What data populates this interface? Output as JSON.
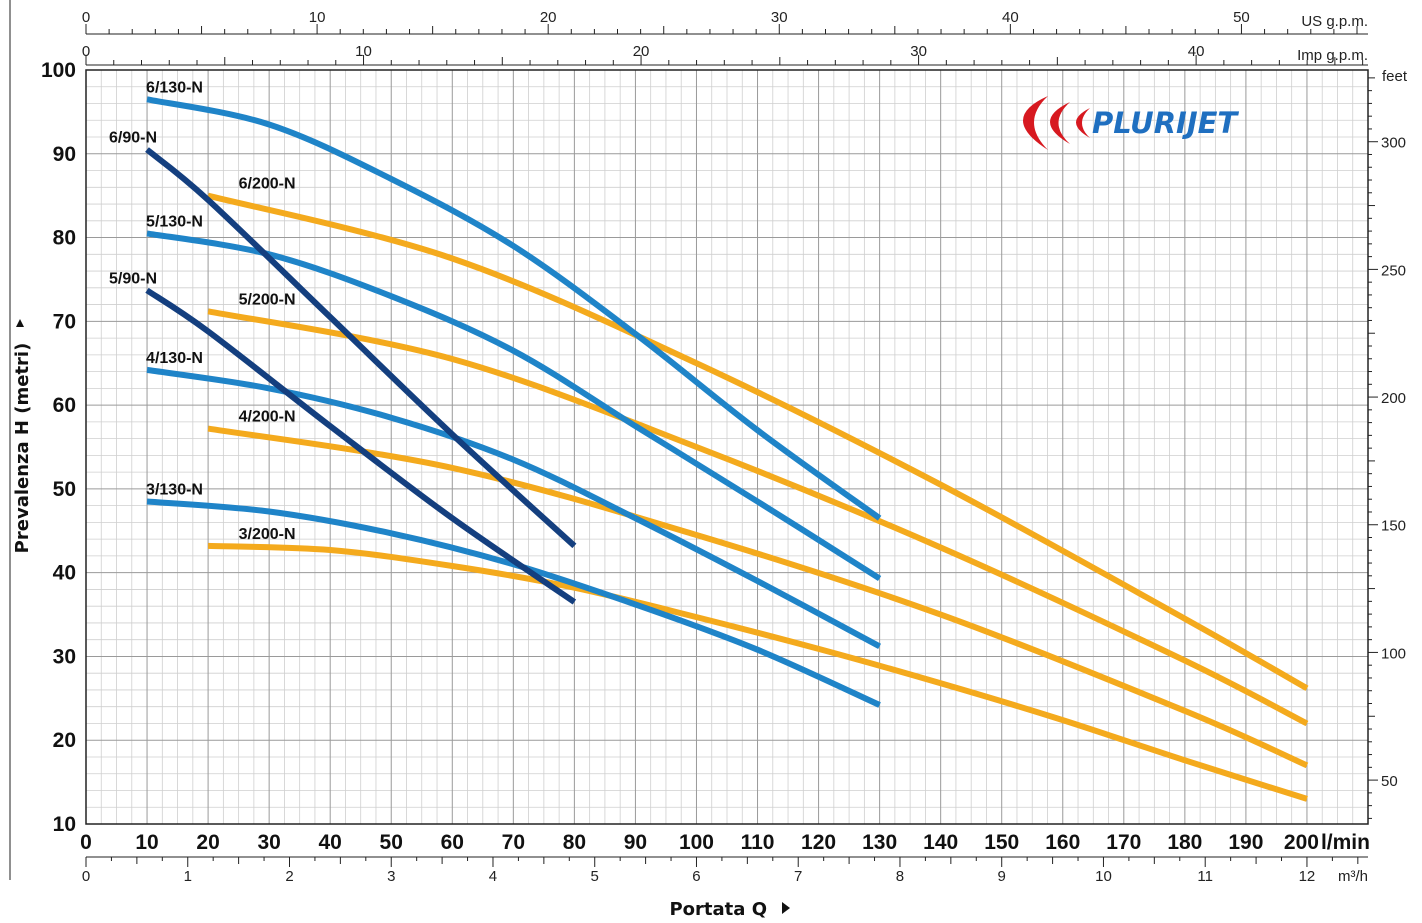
{
  "chart_data": {
    "type": "line",
    "title": "",
    "xlabel": "Portata Q",
    "ylabel": "Prevalenza H (metri)",
    "x_unit": "l/min",
    "xlim": [
      0,
      210
    ],
    "ylim": [
      10,
      100
    ],
    "x_ticks": [
      0,
      10,
      20,
      30,
      40,
      50,
      60,
      70,
      80,
      90,
      100,
      110,
      120,
      130,
      140,
      150,
      160,
      170,
      180,
      190,
      200
    ],
    "y_ticks": [
      10,
      20,
      30,
      40,
      50,
      60,
      70,
      80,
      90,
      100
    ],
    "secondary_axes": {
      "us_gpm": {
        "label": "US g.p.m.",
        "ticks": [
          0,
          10,
          20,
          30,
          40,
          50
        ]
      },
      "imp_gpm": {
        "label": "Imp g.p.m.",
        "ticks": [
          0,
          10,
          20,
          30,
          40
        ]
      },
      "m3h": {
        "label": "m³/h",
        "ticks": [
          0,
          1,
          2,
          3,
          4,
          5,
          6,
          7,
          8,
          9,
          10,
          11,
          12
        ]
      },
      "feet": {
        "label": "feet",
        "ticks": [
          50,
          100,
          150,
          200,
          250,
          300
        ]
      }
    },
    "colors": {
      "light_blue": "#1f84c8",
      "dark_blue": "#143f7f",
      "orange": "#f4aa1d"
    },
    "series": [
      {
        "name": "6/130-N",
        "color": "light_blue",
        "x": [
          10,
          30,
          50,
          70,
          90,
          110,
          130
        ],
        "y": [
          96.5,
          93.5,
          87,
          79,
          68.5,
          57,
          46.5
        ]
      },
      {
        "name": "6/90-N",
        "color": "dark_blue",
        "x": [
          10,
          20,
          40,
          60,
          80
        ],
        "y": [
          90.5,
          84.5,
          70.5,
          56.5,
          43.2
        ]
      },
      {
        "name": "6/200-N",
        "color": "orange",
        "x": [
          20,
          60,
          100,
          140,
          180,
          200
        ],
        "y": [
          85,
          77.5,
          65,
          50.5,
          34.5,
          26.2
        ]
      },
      {
        "name": "5/130-N",
        "color": "light_blue",
        "x": [
          10,
          30,
          50,
          70,
          90,
          110,
          130
        ],
        "y": [
          80.5,
          78,
          73,
          66.5,
          57.5,
          48.5,
          39.3
        ]
      },
      {
        "name": "5/90-N",
        "color": "dark_blue",
        "x": [
          10,
          20,
          40,
          60,
          80
        ],
        "y": [
          73.7,
          68.8,
          57.5,
          46.5,
          36.5
        ]
      },
      {
        "name": "5/200-N",
        "color": "orange",
        "x": [
          20,
          60,
          100,
          140,
          180,
          200
        ],
        "y": [
          71.2,
          65.5,
          55,
          43,
          29.5,
          22
        ]
      },
      {
        "name": "4/130-N",
        "color": "light_blue",
        "x": [
          10,
          30,
          50,
          70,
          90,
          110,
          130
        ],
        "y": [
          64.2,
          62,
          58.5,
          53.5,
          46.5,
          39,
          31.2
        ]
      },
      {
        "name": "4/200-N",
        "color": "orange",
        "x": [
          20,
          60,
          100,
          140,
          180,
          200
        ],
        "y": [
          57.2,
          52.5,
          44.5,
          35,
          23.5,
          17
        ]
      },
      {
        "name": "3/130-N",
        "color": "light_blue",
        "x": [
          10,
          30,
          50,
          70,
          90,
          110,
          130
        ],
        "y": [
          48.5,
          47.3,
          44.7,
          41,
          36.2,
          30.8,
          24.2
        ]
      },
      {
        "name": "3/200-N",
        "color": "orange",
        "x": [
          20,
          40,
          60,
          80,
          100,
          120,
          140,
          160,
          180,
          200
        ],
        "y": [
          43.2,
          42.7,
          40.8,
          38.2,
          34.7,
          30.9,
          26.8,
          22.4,
          17.6,
          13
        ]
      }
    ]
  },
  "logo": {
    "text": "PLURIJET",
    "color": "#d71920"
  }
}
